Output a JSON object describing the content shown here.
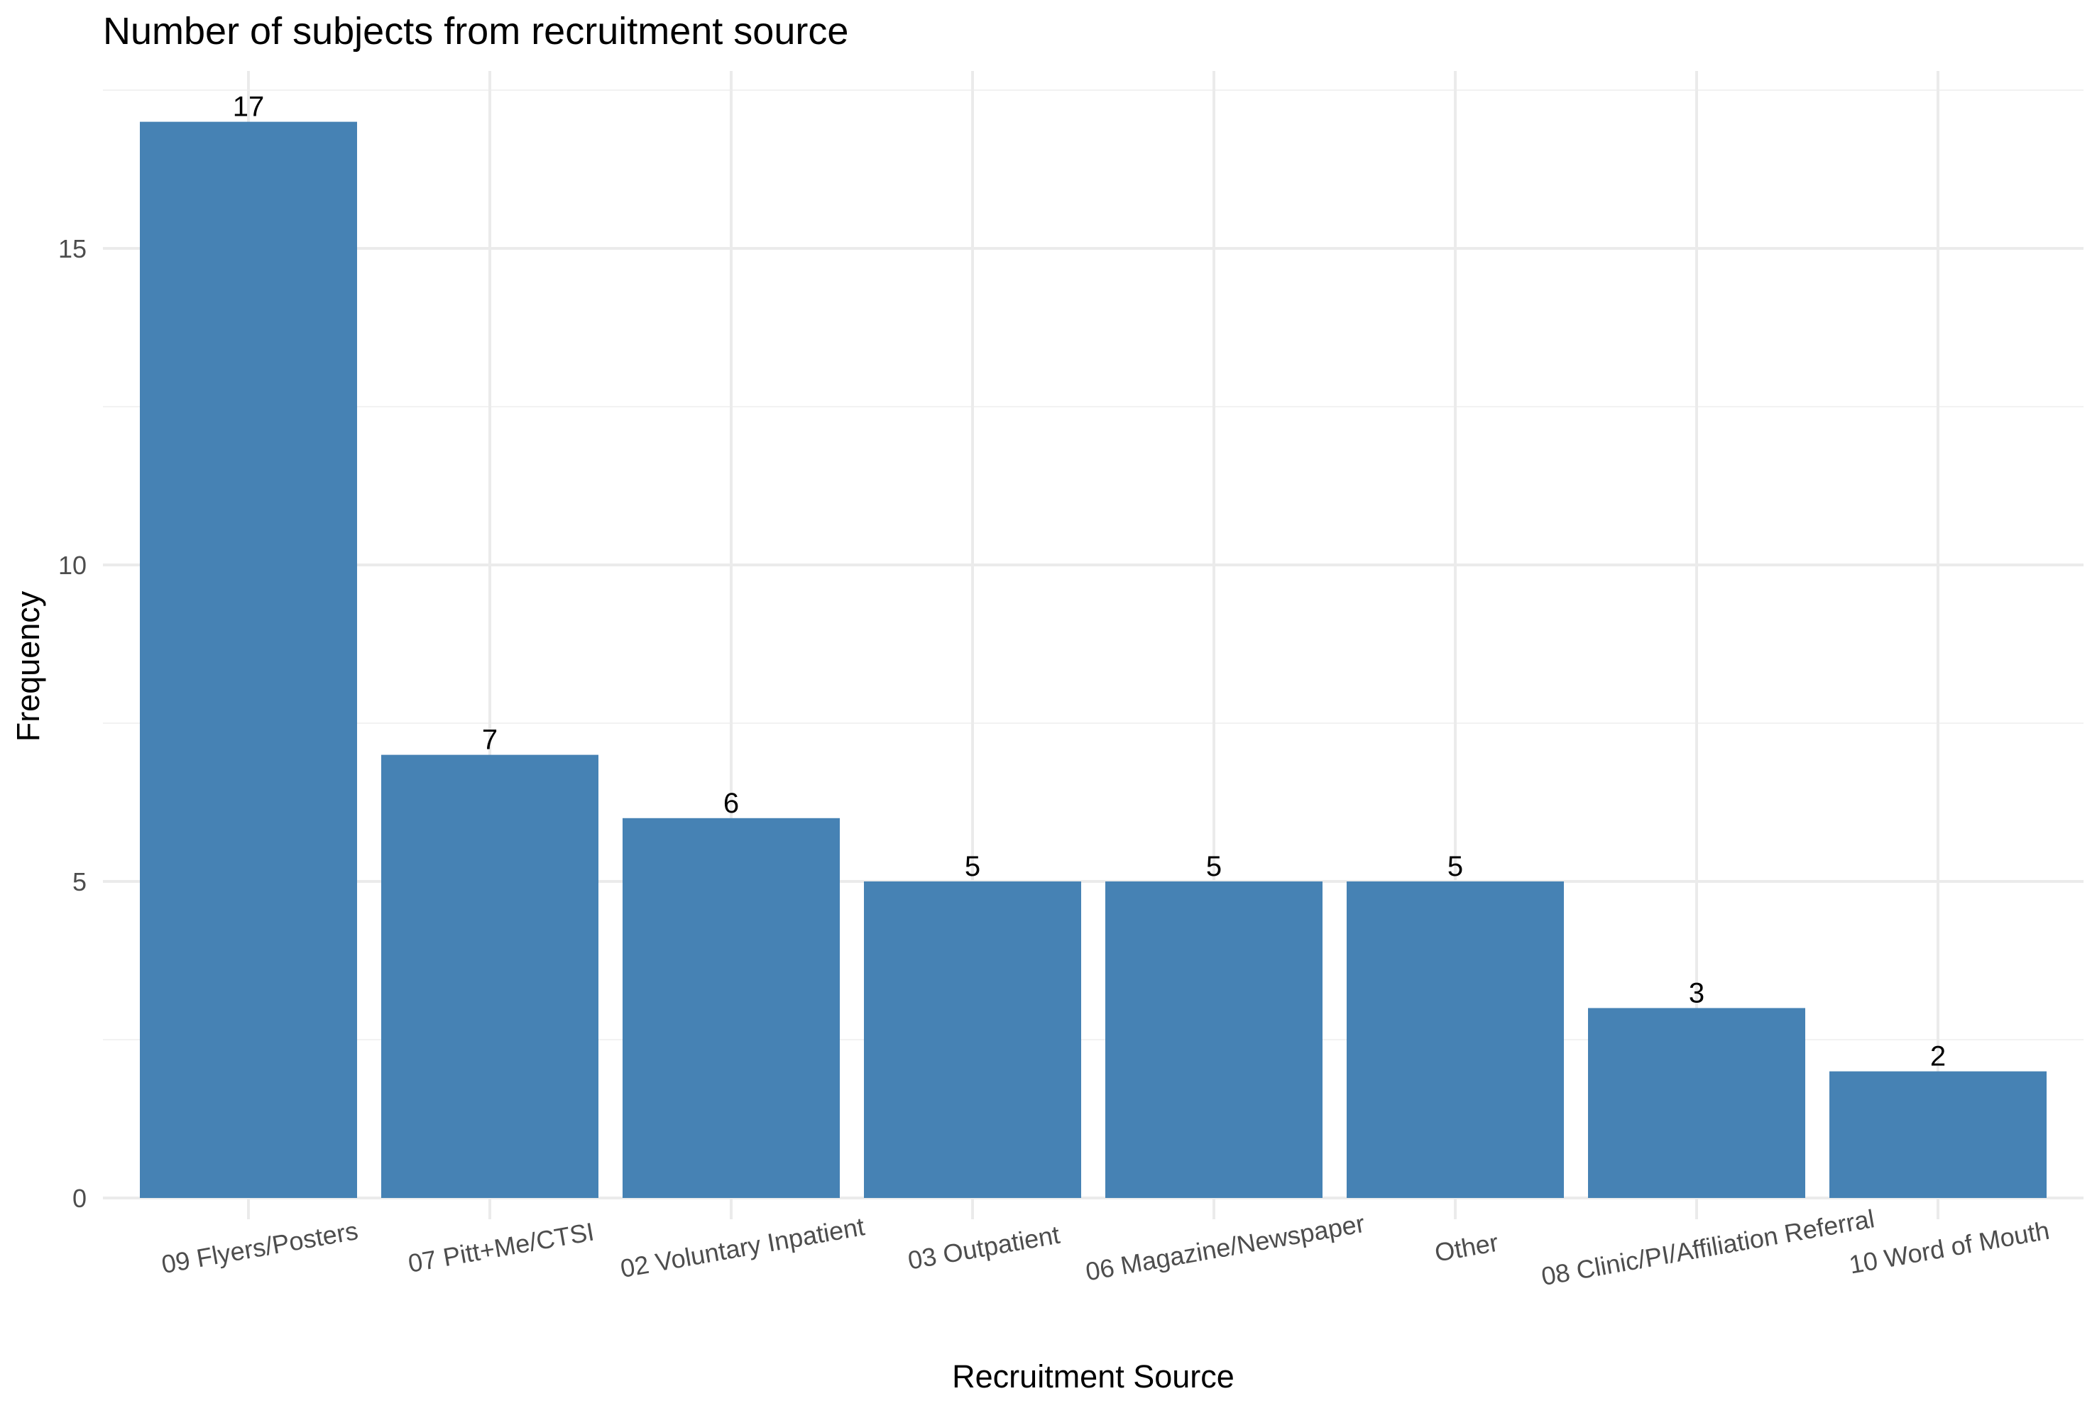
{
  "chart_data": {
    "type": "bar",
    "title": "Number of subjects from recruitment source",
    "xlabel": "Recruitment Source",
    "ylabel": "Frequency",
    "categories": [
      "09 Flyers/Posters",
      "07 Pitt+Me/CTSI",
      "02 Voluntary Inpatient",
      "03 Outpatient",
      "06 Magazine/Newspaper",
      "Other",
      "08 Clinic/PI/Affiliation Referral",
      "10 Word of Mouth"
    ],
    "values": [
      17,
      7,
      6,
      5,
      5,
      5,
      3,
      2
    ],
    "data_labels": [
      "17",
      "7",
      "6",
      "5",
      "5",
      "5",
      "3",
      "2"
    ],
    "yticks": [
      0,
      5,
      10,
      15
    ],
    "ytick_labels": [
      "0",
      "5",
      "10",
      "15"
    ],
    "ylim": [
      0,
      17.0
    ],
    "grid": true,
    "bar_color": "#4682b4",
    "x_tick_rotation_deg": 10
  }
}
